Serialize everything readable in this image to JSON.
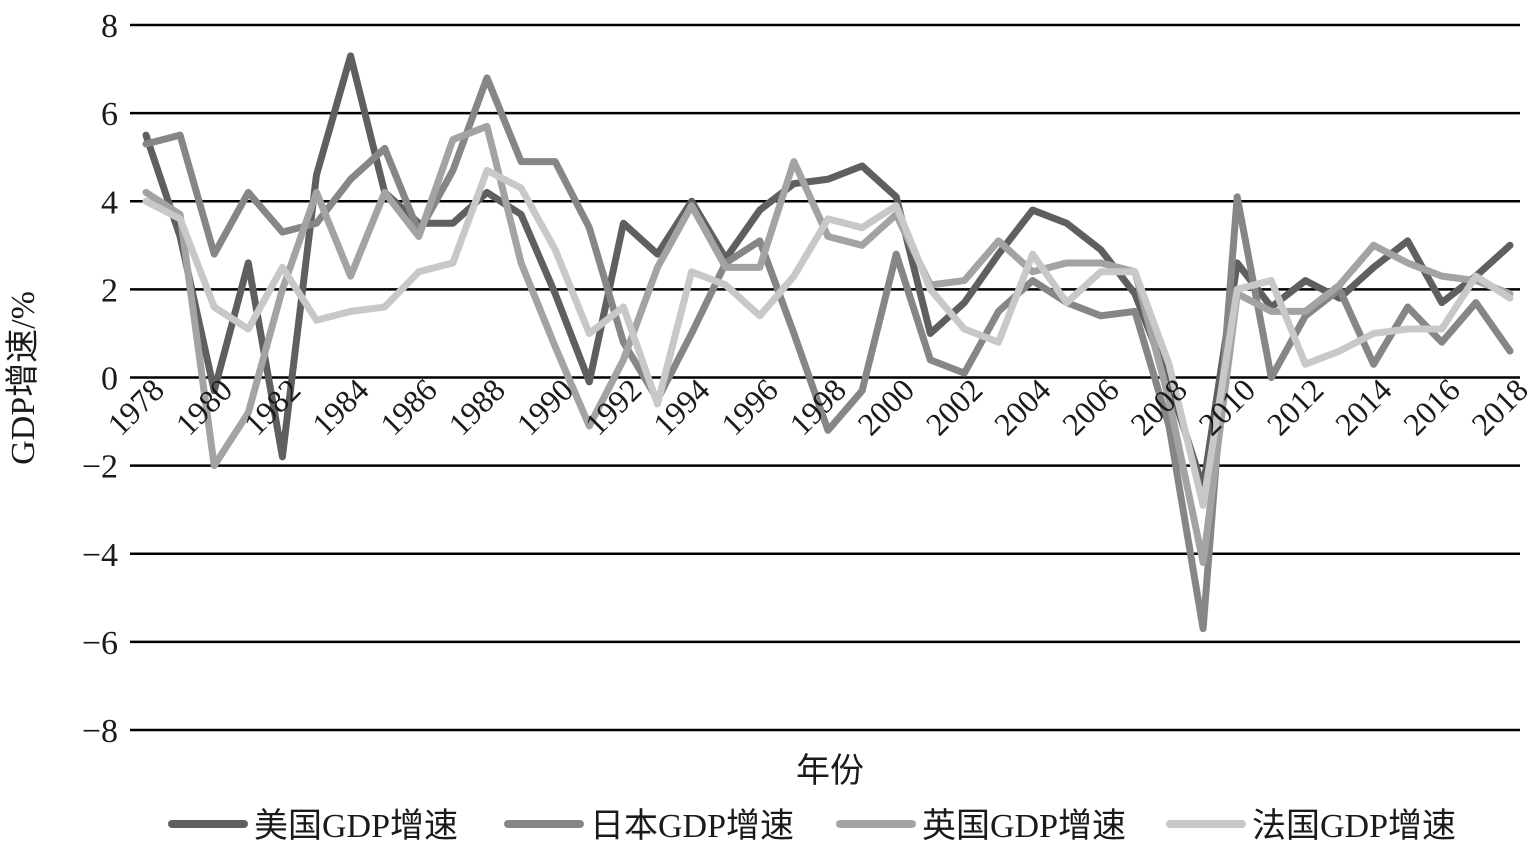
{
  "chart_data": {
    "type": "line",
    "ylabel": "GDP增速/%",
    "xlabel": "年份",
    "ylim": [
      -8,
      8
    ],
    "yticks": [
      8,
      6,
      4,
      2,
      0,
      -2,
      -4,
      -6,
      -8
    ],
    "ytick_labels": [
      "8",
      "6",
      "4",
      "2",
      "0",
      "−2",
      "−4",
      "−6",
      "−8"
    ],
    "x": [
      1978,
      1979,
      1980,
      1981,
      1982,
      1983,
      1984,
      1985,
      1986,
      1987,
      1988,
      1989,
      1990,
      1991,
      1992,
      1993,
      1994,
      1995,
      1996,
      1997,
      1998,
      1999,
      2000,
      2001,
      2002,
      2003,
      2004,
      2005,
      2006,
      2007,
      2008,
      2009,
      2010,
      2011,
      2012,
      2013,
      2014,
      2015,
      2016,
      2017,
      2018
    ],
    "xtick_labels": [
      "1978",
      "1980",
      "1982",
      "1984",
      "1986",
      "1988",
      "1990",
      "1992",
      "1994",
      "1996",
      "1998",
      "2000",
      "2002",
      "2004",
      "2006",
      "2008",
      "2010",
      "2012",
      "2014",
      "2016",
      "2018"
    ],
    "grid": true,
    "legend_position": "bottom",
    "series": [
      {
        "name": "美国GDP增速",
        "color": "#5f5f5f",
        "values": [
          5.5,
          3.2,
          -0.3,
          2.6,
          -1.8,
          4.6,
          7.3,
          4.2,
          3.5,
          3.5,
          4.2,
          3.7,
          1.9,
          -0.1,
          3.5,
          2.8,
          4.0,
          2.7,
          3.8,
          4.4,
          4.5,
          4.8,
          4.1,
          1.0,
          1.7,
          2.8,
          3.8,
          3.5,
          2.9,
          1.9,
          -0.1,
          -2.5,
          2.6,
          1.6,
          2.2,
          1.8,
          2.5,
          3.1,
          1.7,
          2.3,
          3.0
        ]
      },
      {
        "name": "日本GDP增速",
        "color": "#868686",
        "values": [
          5.3,
          5.5,
          2.8,
          4.2,
          3.3,
          3.5,
          4.5,
          5.2,
          3.3,
          4.7,
          6.8,
          4.9,
          4.9,
          3.4,
          0.8,
          -0.5,
          1.0,
          2.6,
          3.1,
          1.0,
          -1.2,
          -0.3,
          2.8,
          0.4,
          0.1,
          1.5,
          2.2,
          1.7,
          1.4,
          1.5,
          -1.1,
          -5.7,
          4.1,
          0.0,
          1.4,
          2.0,
          0.3,
          1.6,
          0.8,
          1.7,
          0.6
        ]
      },
      {
        "name": "英国GDP增速",
        "color": "#a3a3a3",
        "values": [
          4.2,
          3.7,
          -2.0,
          -0.8,
          2.0,
          4.2,
          2.3,
          4.2,
          3.2,
          5.4,
          5.7,
          2.6,
          0.7,
          -1.1,
          0.4,
          2.5,
          3.9,
          2.5,
          2.5,
          4.9,
          3.2,
          3.0,
          3.7,
          2.1,
          2.2,
          3.1,
          2.4,
          2.6,
          2.6,
          2.4,
          -0.5,
          -4.2,
          1.9,
          1.5,
          1.5,
          2.1,
          3.0,
          2.6,
          2.3,
          2.2,
          1.9
        ]
      },
      {
        "name": "法国GDP增速",
        "color": "#c8c8c8",
        "values": [
          4.0,
          3.6,
          1.6,
          1.1,
          2.5,
          1.3,
          1.5,
          1.6,
          2.4,
          2.6,
          4.7,
          4.3,
          2.9,
          1.0,
          1.6,
          -0.6,
          2.4,
          2.1,
          1.4,
          2.3,
          3.6,
          3.4,
          3.9,
          2.0,
          1.1,
          0.8,
          2.8,
          1.7,
          2.4,
          2.4,
          0.3,
          -2.9,
          2.0,
          2.2,
          0.3,
          0.6,
          1.0,
          1.1,
          1.1,
          2.3,
          1.8
        ]
      }
    ]
  }
}
